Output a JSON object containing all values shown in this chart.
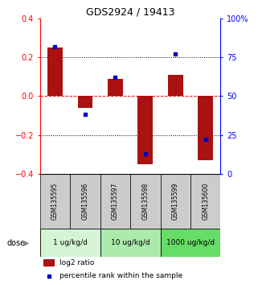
{
  "title": "GDS2924 / 19413",
  "samples": [
    "GSM135595",
    "GSM135596",
    "GSM135597",
    "GSM135598",
    "GSM135599",
    "GSM135600"
  ],
  "log2_ratios": [
    0.25,
    -0.06,
    0.09,
    -0.35,
    0.11,
    -0.33
  ],
  "percentile_ranks": [
    82,
    38,
    62,
    13,
    77,
    22
  ],
  "dose_groups": [
    {
      "label": "1 ug/kg/d",
      "samples": [
        0,
        1
      ],
      "color": "#d4f4d4"
    },
    {
      "label": "10 ug/kg/d",
      "samples": [
        2,
        3
      ],
      "color": "#aaeaaa"
    },
    {
      "label": "1000 ug/kg/d",
      "samples": [
        4,
        5
      ],
      "color": "#66dd66"
    }
  ],
  "bar_color": "#aa1111",
  "dot_color": "#0000cc",
  "left_ylim": [
    -0.4,
    0.4
  ],
  "right_ylim": [
    0,
    100
  ],
  "left_yticks": [
    -0.4,
    -0.2,
    0.0,
    0.2,
    0.4
  ],
  "right_yticks": [
    0,
    25,
    50,
    75,
    100
  ],
  "right_yticklabels": [
    "0",
    "25",
    "50",
    "75",
    "100%"
  ],
  "sample_box_color": "#cccccc",
  "dose_label": "dose",
  "legend_items": [
    {
      "color": "#aa1111",
      "label": "log2 ratio"
    },
    {
      "color": "#0000cc",
      "label": "percentile rank within the sample"
    }
  ],
  "title_fontsize": 9,
  "tick_fontsize": 7,
  "bar_width": 0.5
}
